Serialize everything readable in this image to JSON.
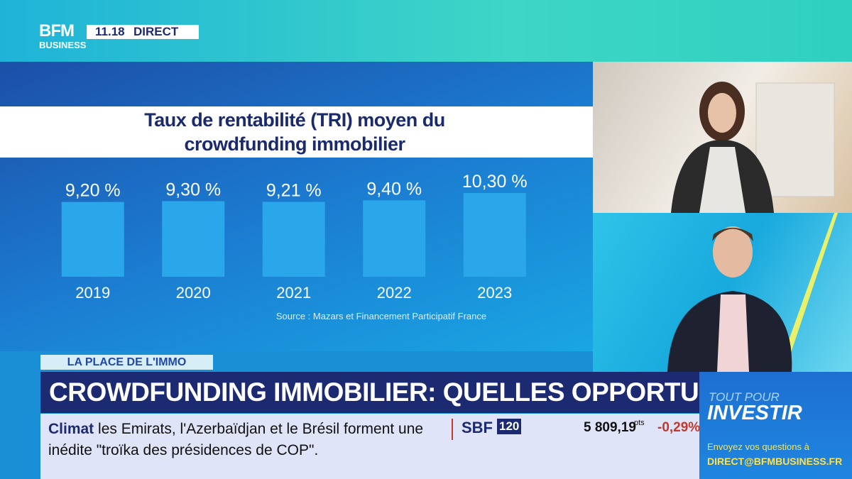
{
  "chart_data": {
    "type": "bar",
    "title": "Taux de rentabilité (TRI) moyen du crowdfunding immobilier",
    "categories": [
      "2019",
      "2020",
      "2021",
      "2022",
      "2023"
    ],
    "values": [
      9.2,
      9.3,
      9.21,
      9.4,
      10.3
    ],
    "value_labels": [
      "9,20 %",
      "9,30 %",
      "9,21 %",
      "9,40 %",
      "10,30 %"
    ],
    "color": "#2aa6ea",
    "source": "Source : Mazars et Financement Participatif France"
  },
  "header": {
    "logo_top": "BFM",
    "logo_bottom": "BUSINESS",
    "time": "11.18",
    "live": "DIRECT"
  },
  "lower_third": {
    "tag": "LA PLACE DE L'IMMO",
    "headline": "CROWDFUNDING IMMOBILIER: QUELLES OPPORTUNITÉS?"
  },
  "ticker": {
    "topic": "Climat",
    "text": "les Emirats, l'Azerbaïdjan et le Brésil forment une inédite \"troïka des présidences de COP\"."
  },
  "market": {
    "index": "SBF",
    "index_number": "120",
    "value": "5 809,19",
    "unit": "pts",
    "change": "-0,29%"
  },
  "promo": {
    "line1": "TOUT POUR",
    "line2": "INVESTIR",
    "line3": "Envoyez vos questions à",
    "email": "DIRECT@BFMBUSINESS.FR"
  }
}
